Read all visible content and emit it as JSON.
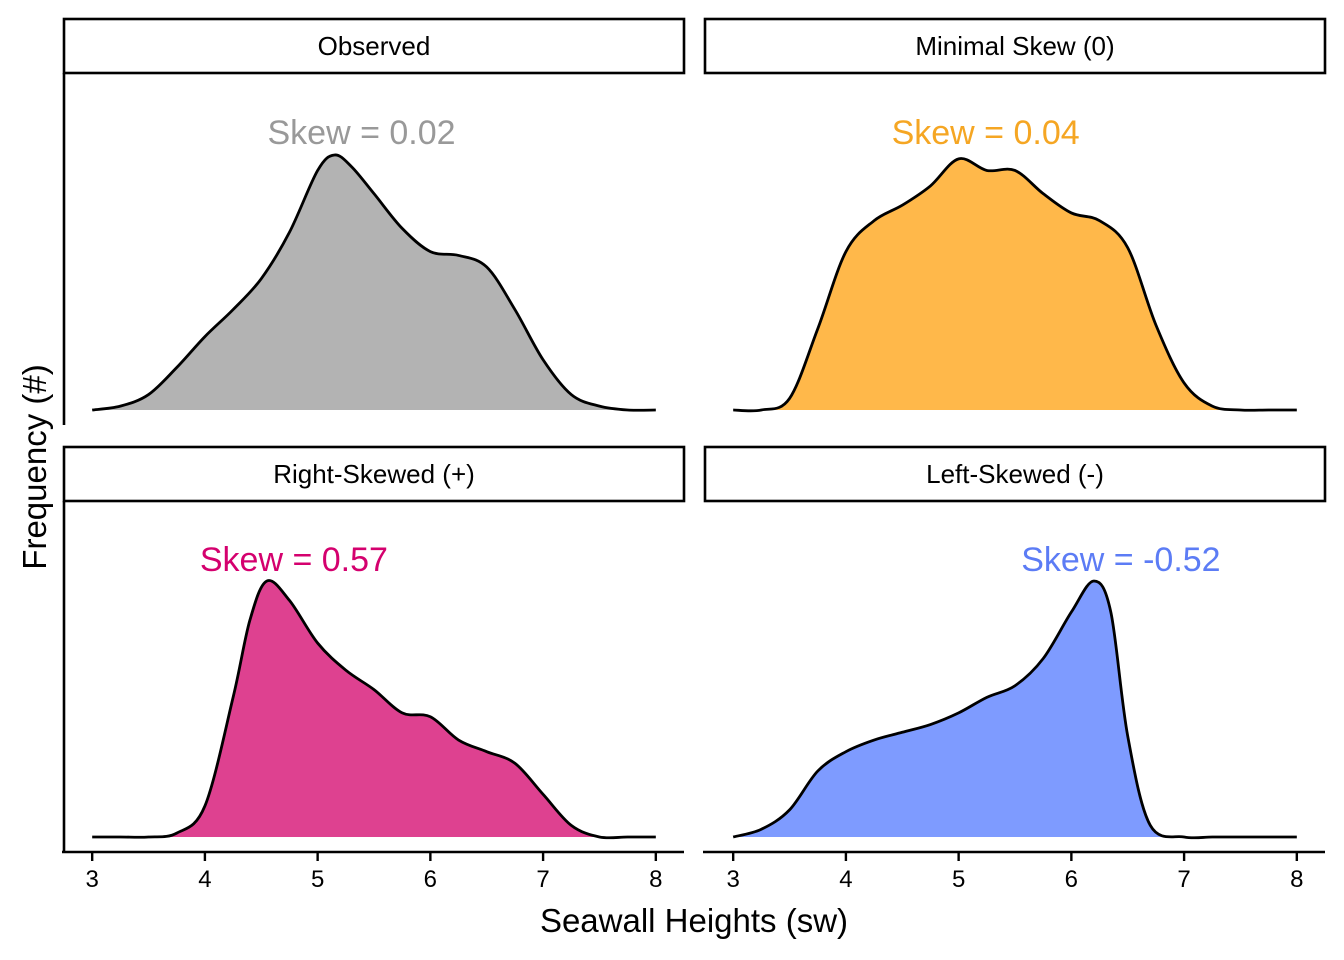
{
  "chart_data": {
    "type": "area",
    "chart_kind": "density-facets",
    "xlabel": "Seawall Heights (sw)",
    "ylabel": "Frequency (#)",
    "xlim": [
      2.75,
      8.25
    ],
    "x_ticks": [
      "3",
      "4",
      "5",
      "6",
      "7",
      "8"
    ],
    "density_range": [
      3,
      8
    ],
    "panels": [
      {
        "strip_label": "Observed",
        "annotation": "Skew = 0.02",
        "color": "#999999",
        "fill": "#b3b3b3",
        "curve": [
          [
            3.0,
            0.0
          ],
          [
            3.25,
            0.01
          ],
          [
            3.5,
            0.04
          ],
          [
            3.75,
            0.11
          ],
          [
            4.0,
            0.19
          ],
          [
            4.25,
            0.26
          ],
          [
            4.5,
            0.34
          ],
          [
            4.75,
            0.46
          ],
          [
            5.0,
            0.62
          ],
          [
            5.15,
            0.66
          ],
          [
            5.3,
            0.63
          ],
          [
            5.5,
            0.56
          ],
          [
            5.75,
            0.47
          ],
          [
            6.0,
            0.41
          ],
          [
            6.25,
            0.4
          ],
          [
            6.5,
            0.37
          ],
          [
            6.75,
            0.26
          ],
          [
            7.0,
            0.13
          ],
          [
            7.25,
            0.04
          ],
          [
            7.5,
            0.01
          ],
          [
            7.75,
            0.0
          ],
          [
            8.0,
            0.0
          ]
        ]
      },
      {
        "strip_label": "Minimal Skew (0)",
        "annotation": "Skew = 0.04",
        "color": "#f5a623",
        "fill": "#ffb84a",
        "curve": [
          [
            3.0,
            0.0
          ],
          [
            3.25,
            0.0
          ],
          [
            3.5,
            0.03
          ],
          [
            3.75,
            0.21
          ],
          [
            4.0,
            0.41
          ],
          [
            4.25,
            0.49
          ],
          [
            4.5,
            0.53
          ],
          [
            4.75,
            0.58
          ],
          [
            5.0,
            0.65
          ],
          [
            5.25,
            0.62
          ],
          [
            5.5,
            0.62
          ],
          [
            5.75,
            0.56
          ],
          [
            6.0,
            0.51
          ],
          [
            6.25,
            0.49
          ],
          [
            6.5,
            0.42
          ],
          [
            6.75,
            0.22
          ],
          [
            7.0,
            0.07
          ],
          [
            7.25,
            0.01
          ],
          [
            7.5,
            0.0
          ],
          [
            7.75,
            0.0
          ],
          [
            8.0,
            0.0
          ]
        ]
      },
      {
        "strip_label": "Right-Skewed (+)",
        "annotation": "Skew = 0.57",
        "color": "#d4006e",
        "fill": "#de4190",
        "curve": [
          [
            3.0,
            0.0
          ],
          [
            3.25,
            0.0
          ],
          [
            3.5,
            0.0
          ],
          [
            3.75,
            0.01
          ],
          [
            4.0,
            0.08
          ],
          [
            4.25,
            0.36
          ],
          [
            4.4,
            0.56
          ],
          [
            4.55,
            0.66
          ],
          [
            4.75,
            0.61
          ],
          [
            5.0,
            0.5
          ],
          [
            5.25,
            0.43
          ],
          [
            5.5,
            0.38
          ],
          [
            5.75,
            0.32
          ],
          [
            6.0,
            0.31
          ],
          [
            6.25,
            0.25
          ],
          [
            6.5,
            0.22
          ],
          [
            6.75,
            0.19
          ],
          [
            7.0,
            0.11
          ],
          [
            7.25,
            0.03
          ],
          [
            7.5,
            0.0
          ],
          [
            7.75,
            0.0
          ],
          [
            8.0,
            0.0
          ]
        ]
      },
      {
        "strip_label": "Left-Skewed (-)",
        "annotation": "Skew = -0.52",
        "color": "#5c7cf5",
        "fill": "#7e9bff",
        "curve": [
          [
            3.0,
            0.0
          ],
          [
            3.25,
            0.02
          ],
          [
            3.5,
            0.07
          ],
          [
            3.75,
            0.17
          ],
          [
            4.0,
            0.22
          ],
          [
            4.25,
            0.25
          ],
          [
            4.5,
            0.27
          ],
          [
            4.75,
            0.29
          ],
          [
            5.0,
            0.32
          ],
          [
            5.25,
            0.36
          ],
          [
            5.5,
            0.39
          ],
          [
            5.75,
            0.46
          ],
          [
            6.0,
            0.58
          ],
          [
            6.2,
            0.66
          ],
          [
            6.35,
            0.58
          ],
          [
            6.5,
            0.26
          ],
          [
            6.7,
            0.03
          ],
          [
            7.0,
            0.0
          ],
          [
            7.25,
            0.0
          ],
          [
            7.5,
            0.0
          ],
          [
            7.75,
            0.0
          ],
          [
            8.0,
            0.0
          ]
        ]
      }
    ]
  }
}
